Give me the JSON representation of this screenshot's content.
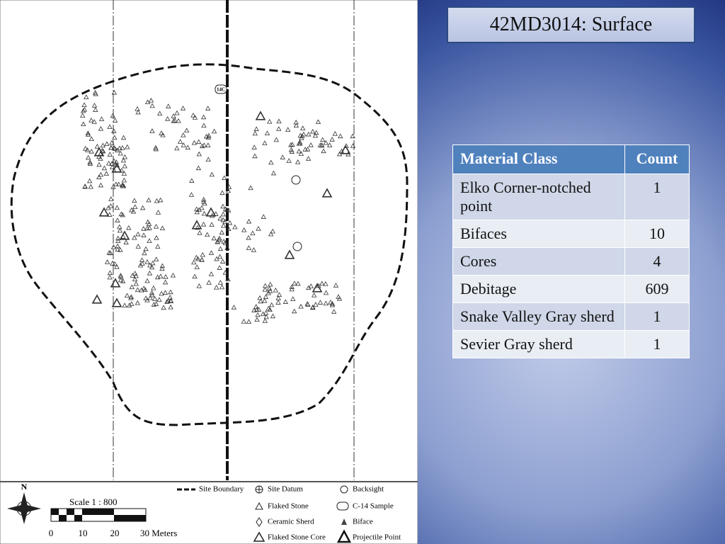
{
  "slide": {
    "title": "42MD3014: Surface"
  },
  "map": {
    "north": "N",
    "scale": "Scale 1 : 800",
    "scale_labels": [
      "0",
      "10",
      "20",
      "30 Meters"
    ],
    "c14": "14C",
    "legend": [
      "Site Boundary",
      "Site Datum",
      "Backsight",
      "Flaked Stone",
      "C-14 Sample",
      "Ceramic Sherd",
      "Biface",
      "Flaked Stone Core",
      "Projectile Point"
    ]
  },
  "table": {
    "header": [
      "Material Class",
      "Count"
    ],
    "rows": [
      [
        "Elko Corner-notched point",
        1
      ],
      [
        "Bifaces",
        10
      ],
      [
        "Cores",
        4
      ],
      [
        "Debitage",
        609
      ],
      [
        "Snake Valley Gray sherd",
        1
      ],
      [
        "Sevier Gray sherd",
        1
      ]
    ]
  }
}
